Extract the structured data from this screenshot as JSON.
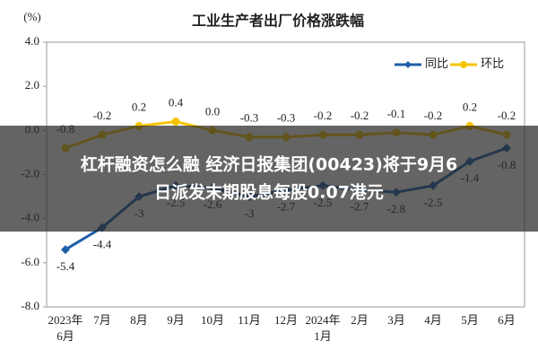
{
  "chart_data": {
    "type": "line",
    "title": "工业生产者出厂价格涨跌幅",
    "y_label": "(%)",
    "categories": [
      "2023年6月",
      "7月",
      "8月",
      "9月",
      "10月",
      "11月",
      "12月",
      "2024年1月",
      "2月",
      "3月",
      "4月",
      "5月",
      "6月"
    ],
    "series": [
      {
        "name": "同比",
        "color": "#1f5fa8",
        "marker": "diamond",
        "values": [
          -5.4,
          -4.4,
          -3.0,
          -2.5,
          -2.6,
          -3.0,
          -2.7,
          -2.5,
          -2.7,
          -2.8,
          -2.5,
          -1.4,
          -0.8
        ]
      },
      {
        "name": "环比",
        "color": "#f5c400",
        "marker": "circle",
        "values": [
          -0.8,
          -0.2,
          0.2,
          0.4,
          0.0,
          -0.3,
          -0.3,
          -0.2,
          -0.2,
          -0.1,
          -0.2,
          0.2,
          -0.2
        ],
        "value_labels": [
          "-0.8",
          "-0.2",
          "0.2",
          "0.4",
          "0.0",
          "-0.3",
          "-0.3",
          "-0.2",
          "-0.2",
          "-0.1",
          "-0.2",
          "0.2",
          "-0.2"
        ]
      }
    ],
    "ylim": [
      -8,
      4
    ],
    "yticks": [
      {
        "value": -8,
        "label": "-8.0"
      },
      {
        "value": -6,
        "label": "-6.0"
      },
      {
        "value": -4,
        "label": "-4.0"
      },
      {
        "value": -2,
        "label": "-2.0"
      },
      {
        "value": 0,
        "label": "0.0"
      },
      {
        "value": 2,
        "label": "2.0"
      },
      {
        "value": 4,
        "label": "4.0"
      }
    ],
    "grid": false,
    "legend": "top-right"
  },
  "banner": {
    "lines": [
      "杠杆融资怎么融 经济日报集团(00423)将于9月6",
      "日派发末期股息每股0.07港元"
    ]
  }
}
